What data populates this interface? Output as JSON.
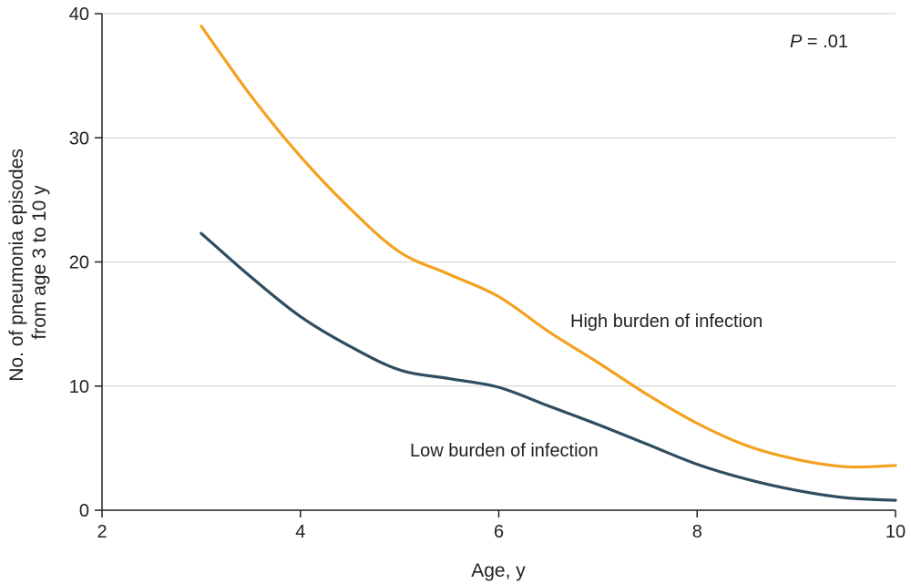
{
  "chart_data": {
    "type": "line",
    "title": "",
    "xlabel": "Age, y",
    "ylabel_lines": [
      "No. of pneumonia episodes",
      "from age 3 to 10 y"
    ],
    "xlim": [
      2,
      10
    ],
    "ylim": [
      0,
      40
    ],
    "x_ticks": [
      2,
      4,
      6,
      8,
      10
    ],
    "y_ticks": [
      0,
      10,
      20,
      30,
      40
    ],
    "x_tick_labels": [
      "2",
      "4",
      "6",
      "8",
      "10"
    ],
    "y_tick_labels": [
      "0",
      "10",
      "20",
      "30",
      "40"
    ],
    "grid": "horizontal",
    "annotation": {
      "p_symbol": "P",
      "p_value": " = .01"
    },
    "series": [
      {
        "name": "High burden of infection",
        "color": "#f4a11f",
        "x": [
          3.0,
          3.5,
          4.0,
          4.5,
          5.0,
          5.5,
          6.0,
          6.5,
          7.0,
          7.5,
          8.0,
          8.5,
          9.0,
          9.5,
          10.0
        ],
        "values": [
          39.0,
          33.4,
          28.5,
          24.3,
          20.8,
          19.0,
          17.2,
          14.4,
          11.9,
          9.3,
          7.0,
          5.2,
          4.1,
          3.5,
          3.6
        ]
      },
      {
        "name": "Low burden of infection",
        "color": "#2e4d5f",
        "x": [
          3.0,
          3.5,
          4.0,
          4.5,
          5.0,
          5.5,
          6.0,
          6.5,
          7.0,
          7.5,
          8.0,
          8.5,
          9.0,
          9.5,
          10.0
        ],
        "values": [
          22.3,
          18.8,
          15.6,
          13.2,
          11.3,
          10.6,
          9.9,
          8.4,
          6.9,
          5.3,
          3.7,
          2.5,
          1.6,
          1.0,
          0.8
        ]
      }
    ]
  }
}
